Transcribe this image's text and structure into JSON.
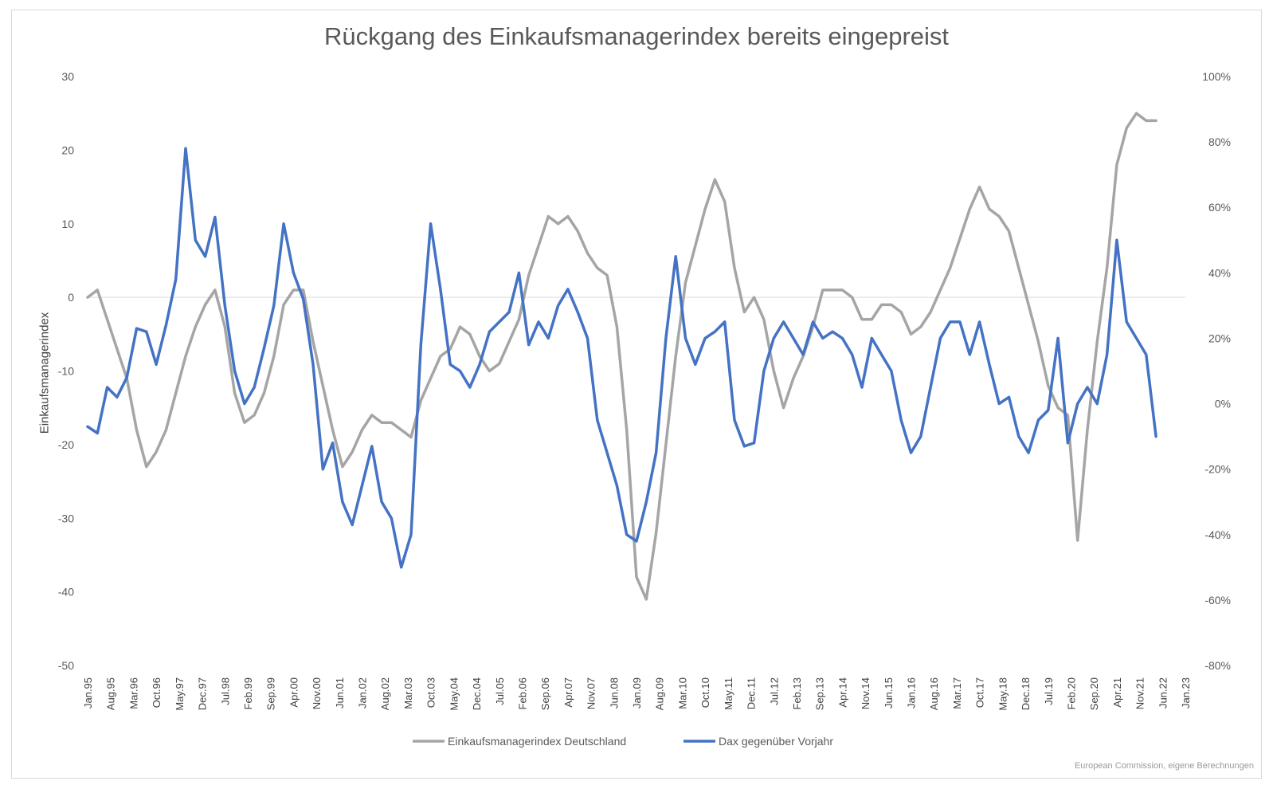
{
  "chart_data": {
    "type": "line",
    "title": "Rückgang des Einkaufsmanagerindex bereits eingepreist",
    "ylabel": "Einkaufsmanagerindex",
    "ylim": [
      -50,
      30
    ],
    "y2lim": [
      -0.8,
      1.0
    ],
    "yticks": [
      "30",
      "20",
      "10",
      "0",
      "-10",
      "-20",
      "-30",
      "-40",
      "-50"
    ],
    "y2ticks": [
      "100%",
      "80%",
      "60%",
      "40%",
      "20%",
      "0%",
      "-20%",
      "-40%",
      "-60%",
      "-80%"
    ],
    "x_range": [
      "Jan.95",
      "Jan.23"
    ],
    "xticks": [
      "Jan.95",
      "Aug.95",
      "Mar.96",
      "Oct.96",
      "May.97",
      "Dec.97",
      "Jul.98",
      "Feb.99",
      "Sep.99",
      "Apr.00",
      "Nov.00",
      "Jun.01",
      "Jan.02",
      "Aug.02",
      "Mar.03",
      "Oct.03",
      "May.04",
      "Dec.04",
      "Jul.05",
      "Feb.06",
      "Sep.06",
      "Apr.07",
      "Nov.07",
      "Jun.08",
      "Jan.09",
      "Aug.09",
      "Mar.10",
      "Oct.10",
      "May.11",
      "Dec.11",
      "Jul.12",
      "Feb.13",
      "Sep.13",
      "Apr.14",
      "Nov.14",
      "Jun.15",
      "Jan.16",
      "Aug.16",
      "Mar.17",
      "Oct.17",
      "May.18",
      "Dec.18",
      "Jul.19",
      "Feb.20",
      "Sep.20",
      "Apr.21",
      "Nov.21",
      "Jun.22",
      "Jan.23"
    ],
    "grid": false,
    "legend_position": "bottom",
    "series": [
      {
        "name": "Einkaufsmanagerindex Deutschland",
        "axis": "left",
        "color": "#a5a5a5",
        "points": [
          [
            "Jan.95",
            0
          ],
          [
            "Apr.95",
            1
          ],
          [
            "Jul.95",
            -3
          ],
          [
            "Oct.95",
            -7
          ],
          [
            "Jan.96",
            -11
          ],
          [
            "Apr.96",
            -18
          ],
          [
            "Jul.96",
            -23
          ],
          [
            "Oct.96",
            -21
          ],
          [
            "Jan.97",
            -18
          ],
          [
            "Apr.97",
            -13
          ],
          [
            "Jul.97",
            -8
          ],
          [
            "Oct.97",
            -4
          ],
          [
            "Jan.98",
            -1
          ],
          [
            "Apr.98",
            1
          ],
          [
            "Jul.98",
            -4
          ],
          [
            "Oct.98",
            -13
          ],
          [
            "Jan.99",
            -17
          ],
          [
            "Apr.99",
            -16
          ],
          [
            "Jul.99",
            -13
          ],
          [
            "Oct.99",
            -8
          ],
          [
            "Jan.00",
            -1
          ],
          [
            "Apr.00",
            1
          ],
          [
            "Jul.00",
            1
          ],
          [
            "Oct.00",
            -6
          ],
          [
            "Jan.01",
            -12
          ],
          [
            "Apr.01",
            -18
          ],
          [
            "Jul.01",
            -23
          ],
          [
            "Oct.01",
            -21
          ],
          [
            "Jan.02",
            -18
          ],
          [
            "Apr.02",
            -16
          ],
          [
            "Jul.02",
            -17
          ],
          [
            "Oct.02",
            -17
          ],
          [
            "Jan.03",
            -18
          ],
          [
            "Apr.03",
            -19
          ],
          [
            "Jul.03",
            -14
          ],
          [
            "Oct.03",
            -11
          ],
          [
            "Jan.04",
            -8
          ],
          [
            "Apr.04",
            -7
          ],
          [
            "Jul.04",
            -4
          ],
          [
            "Oct.04",
            -5
          ],
          [
            "Jan.05",
            -8
          ],
          [
            "Apr.05",
            -10
          ],
          [
            "Jul.05",
            -9
          ],
          [
            "Oct.05",
            -6
          ],
          [
            "Jan.06",
            -3
          ],
          [
            "Apr.06",
            3
          ],
          [
            "Jul.06",
            7
          ],
          [
            "Oct.06",
            11
          ],
          [
            "Jan.07",
            10
          ],
          [
            "Apr.07",
            11
          ],
          [
            "Jul.07",
            9
          ],
          [
            "Oct.07",
            6
          ],
          [
            "Jan.08",
            4
          ],
          [
            "Apr.08",
            3
          ],
          [
            "Jul.08",
            -4
          ],
          [
            "Oct.08",
            -18
          ],
          [
            "Jan.09",
            -38
          ],
          [
            "Apr.09",
            -41
          ],
          [
            "Jul.09",
            -32
          ],
          [
            "Oct.09",
            -20
          ],
          [
            "Jan.10",
            -8
          ],
          [
            "Apr.10",
            2
          ],
          [
            "Jul.10",
            7
          ],
          [
            "Oct.10",
            12
          ],
          [
            "Jan.11",
            16
          ],
          [
            "Apr.11",
            13
          ],
          [
            "Jul.11",
            4
          ],
          [
            "Oct.11",
            -2
          ],
          [
            "Jan.12",
            0
          ],
          [
            "Apr.12",
            -3
          ],
          [
            "Jul.12",
            -10
          ],
          [
            "Oct.12",
            -15
          ],
          [
            "Jan.13",
            -11
          ],
          [
            "Apr.13",
            -8
          ],
          [
            "Jul.13",
            -4
          ],
          [
            "Oct.13",
            1
          ],
          [
            "Jan.14",
            1
          ],
          [
            "Apr.14",
            1
          ],
          [
            "Jul.14",
            0
          ],
          [
            "Oct.14",
            -3
          ],
          [
            "Jan.15",
            -3
          ],
          [
            "Apr.15",
            -1
          ],
          [
            "Jul.15",
            -1
          ],
          [
            "Oct.15",
            -2
          ],
          [
            "Jan.16",
            -5
          ],
          [
            "Apr.16",
            -4
          ],
          [
            "Jul.16",
            -2
          ],
          [
            "Oct.16",
            1
          ],
          [
            "Jan.17",
            4
          ],
          [
            "Apr.17",
            8
          ],
          [
            "Jul.17",
            12
          ],
          [
            "Oct.17",
            15
          ],
          [
            "Jan.18",
            12
          ],
          [
            "Apr.18",
            11
          ],
          [
            "Jul.18",
            9
          ],
          [
            "Oct.18",
            4
          ],
          [
            "Jan.19",
            -1
          ],
          [
            "Apr.19",
            -6
          ],
          [
            "Jul.19",
            -12
          ],
          [
            "Oct.19",
            -15
          ],
          [
            "Jan.20",
            -16
          ],
          [
            "Apr.20",
            -33
          ],
          [
            "Jul.20",
            -18
          ],
          [
            "Oct.20",
            -6
          ],
          [
            "Jan.21",
            4
          ],
          [
            "Apr.21",
            18
          ],
          [
            "Jul.21",
            23
          ],
          [
            "Oct.21",
            25
          ],
          [
            "Jan.22",
            24
          ],
          [
            "Apr.22",
            24
          ]
        ]
      },
      {
        "name": "Dax gegenüber Vorjahr",
        "axis": "right",
        "color": "#4472c4",
        "points": [
          [
            "Jan.95",
            -0.07
          ],
          [
            "Apr.95",
            -0.09
          ],
          [
            "Jul.95",
            0.05
          ],
          [
            "Oct.95",
            0.02
          ],
          [
            "Jan.96",
            0.08
          ],
          [
            "Apr.96",
            0.23
          ],
          [
            "Jul.96",
            0.22
          ],
          [
            "Oct.96",
            0.12
          ],
          [
            "Jan.97",
            0.24
          ],
          [
            "Apr.97",
            0.38
          ],
          [
            "Jul.97",
            0.78
          ],
          [
            "Oct.97",
            0.5
          ],
          [
            "Jan.98",
            0.45
          ],
          [
            "Apr.98",
            0.57
          ],
          [
            "Jul.98",
            0.3
          ],
          [
            "Oct.98",
            0.1
          ],
          [
            "Jan.99",
            0
          ],
          [
            "Apr.99",
            0.05
          ],
          [
            "Jul.99",
            0.17
          ],
          [
            "Oct.99",
            0.3
          ],
          [
            "Jan.00",
            0.55
          ],
          [
            "Apr.00",
            0.4
          ],
          [
            "Jul.00",
            0.32
          ],
          [
            "Oct.00",
            0.12
          ],
          [
            "Jan.01",
            -0.2
          ],
          [
            "Apr.01",
            -0.12
          ],
          [
            "Jul.01",
            -0.3
          ],
          [
            "Oct.01",
            -0.37
          ],
          [
            "Jan.02",
            -0.25
          ],
          [
            "Apr.02",
            -0.13
          ],
          [
            "Jul.02",
            -0.3
          ],
          [
            "Oct.02",
            -0.35
          ],
          [
            "Jan.03",
            -0.5
          ],
          [
            "Apr.03",
            -0.4
          ],
          [
            "Jul.03",
            0.18
          ],
          [
            "Oct.03",
            0.55
          ],
          [
            "Jan.04",
            0.35
          ],
          [
            "Apr.04",
            0.12
          ],
          [
            "Jul.04",
            0.1
          ],
          [
            "Oct.04",
            0.05
          ],
          [
            "Jan.05",
            0.12
          ],
          [
            "Apr.05",
            0.22
          ],
          [
            "Jul.05",
            0.25
          ],
          [
            "Oct.05",
            0.28
          ],
          [
            "Jan.06",
            0.4
          ],
          [
            "Apr.06",
            0.18
          ],
          [
            "Jul.06",
            0.25
          ],
          [
            "Oct.06",
            0.2
          ],
          [
            "Jan.07",
            0.3
          ],
          [
            "Apr.07",
            0.35
          ],
          [
            "Jul.07",
            0.28
          ],
          [
            "Oct.07",
            0.2
          ],
          [
            "Jan.08",
            -0.05
          ],
          [
            "Apr.08",
            -0.15
          ],
          [
            "Jul.08",
            -0.25
          ],
          [
            "Oct.08",
            -0.4
          ],
          [
            "Jan.09",
            -0.42
          ],
          [
            "Apr.09",
            -0.3
          ],
          [
            "Jul.09",
            -0.15
          ],
          [
            "Oct.09",
            0.2
          ],
          [
            "Jan.10",
            0.45
          ],
          [
            "Apr.10",
            0.2
          ],
          [
            "Jul.10",
            0.12
          ],
          [
            "Oct.10",
            0.2
          ],
          [
            "Jan.11",
            0.22
          ],
          [
            "Apr.11",
            0.25
          ],
          [
            "Jul.11",
            -0.05
          ],
          [
            "Oct.11",
            -0.13
          ],
          [
            "Jan.12",
            -0.12
          ],
          [
            "Apr.12",
            0.1
          ],
          [
            "Jul.12",
            0.2
          ],
          [
            "Oct.12",
            0.25
          ],
          [
            "Jan.13",
            0.2
          ],
          [
            "Apr.13",
            0.15
          ],
          [
            "Jul.13",
            0.25
          ],
          [
            "Oct.13",
            0.2
          ],
          [
            "Jan.14",
            0.22
          ],
          [
            "Apr.14",
            0.2
          ],
          [
            "Jul.14",
            0.15
          ],
          [
            "Oct.14",
            0.05
          ],
          [
            "Jan.15",
            0.2
          ],
          [
            "Apr.15",
            0.15
          ],
          [
            "Jul.15",
            0.1
          ],
          [
            "Oct.15",
            -0.05
          ],
          [
            "Jan.16",
            -0.15
          ],
          [
            "Apr.16",
            -0.1
          ],
          [
            "Jul.16",
            0.05
          ],
          [
            "Oct.16",
            0.2
          ],
          [
            "Jan.17",
            0.25
          ],
          [
            "Apr.17",
            0.25
          ],
          [
            "Jul.17",
            0.15
          ],
          [
            "Oct.17",
            0.25
          ],
          [
            "Jan.18",
            0.12
          ],
          [
            "Apr.18",
            0.0
          ],
          [
            "Jul.18",
            0.02
          ],
          [
            "Oct.18",
            -0.1
          ],
          [
            "Jan.19",
            -0.15
          ],
          [
            "Apr.19",
            -0.05
          ],
          [
            "Jul.19",
            -0.02
          ],
          [
            "Oct.19",
            0.2
          ],
          [
            "Jan.20",
            -0.12
          ],
          [
            "Apr.20",
            0.0
          ],
          [
            "Jul.20",
            0.05
          ],
          [
            "Oct.20",
            0.0
          ],
          [
            "Jan.21",
            0.15
          ],
          [
            "Apr.21",
            0.5
          ],
          [
            "Jul.21",
            0.25
          ],
          [
            "Oct.21",
            0.2
          ],
          [
            "Jan.22",
            0.15
          ],
          [
            "Apr.22",
            -0.1
          ]
        ]
      }
    ],
    "source_note": "European Commission, eigene Berechnungen"
  }
}
